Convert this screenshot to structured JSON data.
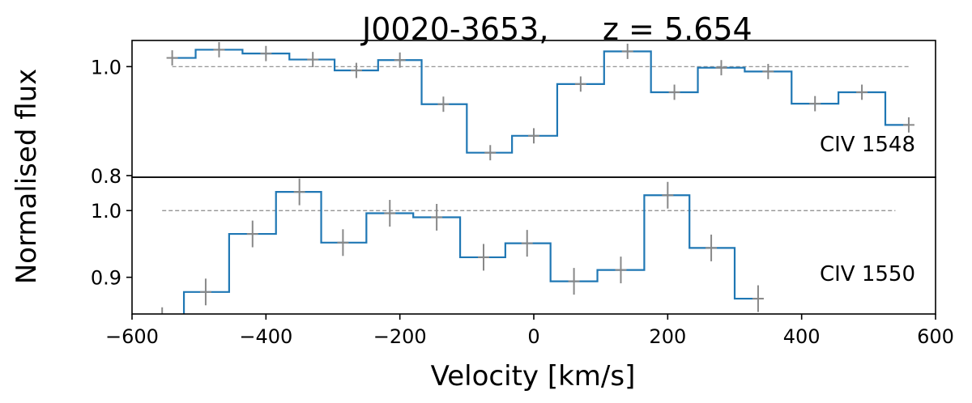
{
  "chart_data": {
    "type": "line",
    "title_left": "J0020-3653,",
    "title_right": "z = 5.654",
    "xlabel": "Velocity [km/s]",
    "ylabel": "Normalised flux",
    "xlim": [
      -600,
      600
    ],
    "xticks": [
      -600,
      -400,
      -200,
      0,
      200,
      400,
      600
    ],
    "xtick_labels": [
      "−600",
      "−400",
      "−200",
      "0",
      "200",
      "400",
      "600"
    ],
    "colors": {
      "step": "#1f77b4",
      "error": "#888888",
      "reference": "#888888"
    },
    "panels": [
      {
        "label": "CIV 1548",
        "ylim": [
          0.797,
          1.048
        ],
        "yticks": [
          0.8,
          1.0
        ],
        "ytick_labels": [
          "0.8",
          "1.0"
        ],
        "reference_level": 1.0,
        "reference_range": [
          -540,
          560
        ],
        "x": [
          -540,
          -470,
          -400,
          -330,
          -265,
          -200,
          -135,
          -65,
          0,
          70,
          140,
          210,
          280,
          350,
          420,
          490,
          560
        ],
        "y": [
          1.016,
          1.031,
          1.024,
          1.013,
          0.993,
          1.012,
          0.931,
          0.842,
          0.873,
          0.968,
          1.028,
          0.953,
          0.998,
          0.991,
          0.932,
          0.953,
          0.893
        ],
        "yerr": [
          0.014,
          0.014,
          0.014,
          0.014,
          0.014,
          0.014,
          0.014,
          0.014,
          0.014,
          0.014,
          0.014,
          0.014,
          0.014,
          0.014,
          0.014,
          0.014,
          0.014
        ]
      },
      {
        "label": "CIV 1550",
        "ylim": [
          0.845,
          1.05
        ],
        "yticks": [
          0.9,
          1.0
        ],
        "ytick_labels": [
          "0.9",
          "1.0"
        ],
        "reference_level": 1.0,
        "reference_range": [
          -555,
          540
        ],
        "x": [
          -555,
          -490,
          -420,
          -350,
          -285,
          -215,
          -145,
          -75,
          -10,
          60,
          130,
          200,
          265,
          335
        ],
        "y": [
          0.835,
          0.878,
          0.965,
          1.028,
          0.952,
          0.996,
          0.99,
          0.93,
          0.951,
          0.894,
          0.911,
          1.023,
          0.944,
          0.868
        ],
        "yerr": [
          0.02,
          0.02,
          0.02,
          0.02,
          0.02,
          0.02,
          0.02,
          0.02,
          0.02,
          0.02,
          0.02,
          0.02,
          0.02,
          0.02
        ]
      }
    ]
  }
}
